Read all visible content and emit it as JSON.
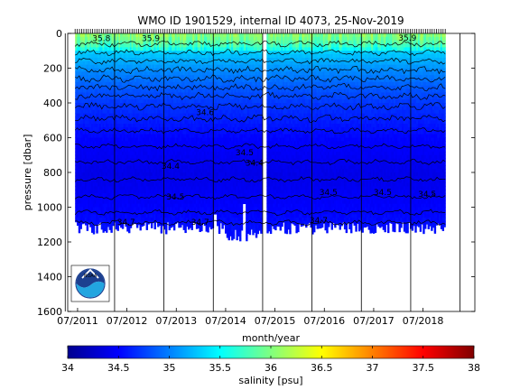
{
  "chart_data": {
    "type": "heatmap",
    "title": "WMO ID 1901529, internal ID 4073, 25-Nov-2019",
    "xlabel": "month/year",
    "ylabel": "pressure [dbar]",
    "x_tick_labels": [
      "07/2011",
      "07/2012",
      "07/2013",
      "07/2014",
      "07/2015",
      "07/2016",
      "07/2017",
      "07/2018"
    ],
    "y_ticks": [
      0,
      200,
      400,
      600,
      800,
      1000,
      1200,
      1400,
      1600
    ],
    "ylim": [
      0,
      1600
    ],
    "x_range_years": [
      2011.5,
      2019.5
    ],
    "profile_span_years": [
      2011.45,
      2018.95
    ],
    "typical_max_pressure_dbar": 1120,
    "data_gap_year": 2015.28,
    "colorbar": {
      "label": "salinity [psu]",
      "min": 34,
      "max": 38,
      "ticks": [
        "34",
        "34.5",
        "35",
        "35.5",
        "36",
        "36.5",
        "37",
        "37.5",
        "38"
      ],
      "colormap": "jet"
    },
    "salinity_by_depth": [
      {
        "pressure": 0,
        "salinity": 35.9
      },
      {
        "pressure": 50,
        "salinity": 35.7
      },
      {
        "pressure": 100,
        "salinity": 35.3
      },
      {
        "pressure": 200,
        "salinity": 35.05
      },
      {
        "pressure": 300,
        "salinity": 34.85
      },
      {
        "pressure": 400,
        "salinity": 34.7
      },
      {
        "pressure": 500,
        "salinity": 34.6
      },
      {
        "pressure": 600,
        "salinity": 34.5
      },
      {
        "pressure": 700,
        "salinity": 34.45
      },
      {
        "pressure": 800,
        "salinity": 34.4
      },
      {
        "pressure": 900,
        "salinity": 34.45
      },
      {
        "pressure": 1000,
        "salinity": 34.5
      },
      {
        "pressure": 1100,
        "salinity": 34.55
      }
    ],
    "contour_labels": [
      "35.8",
      "35.9",
      "35.9",
      "34.6",
      "34.5",
      "34.4",
      "34.4",
      "34.5",
      "34.5",
      "34.5",
      "34.5",
      "34.7",
      "34.7",
      "34.7"
    ],
    "logo": "noaa-logo"
  }
}
